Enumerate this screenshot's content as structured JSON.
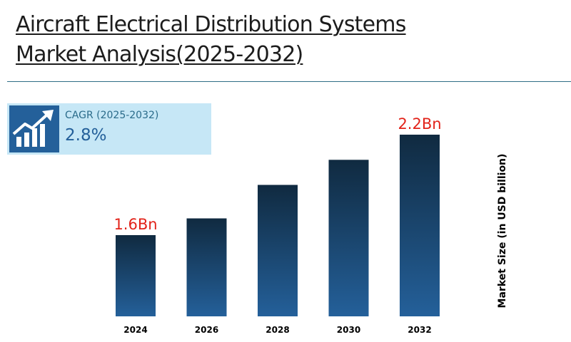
{
  "header": {
    "title_line1": "Aircraft Electrical Distribution Systems",
    "title_line2": "Market Analysis(2025-2032)"
  },
  "cagr": {
    "label": "CAGR (2025-2032)",
    "value": "2.8%",
    "icon": "growth-chart-icon"
  },
  "colors": {
    "bar_top": "#102a40",
    "bar_bottom": "#24609a",
    "label_red": "#e2231a",
    "accent": "#24609a",
    "cagr_bg": "#c6e7f6",
    "divider": "#2f6e86"
  },
  "chart_data": {
    "type": "bar",
    "categories": [
      "2024",
      "2026",
      "2028",
      "2030",
      "2032"
    ],
    "values": [
      1.6,
      1.7,
      1.9,
      2.05,
      2.2
    ],
    "data_labels": [
      "1.6Bn",
      "",
      "",
      "",
      "2.2Bn"
    ],
    "ylabel": "Market Size (in USD billion)",
    "xlabel": "",
    "title": "",
    "grid": false,
    "legend": "none"
  }
}
